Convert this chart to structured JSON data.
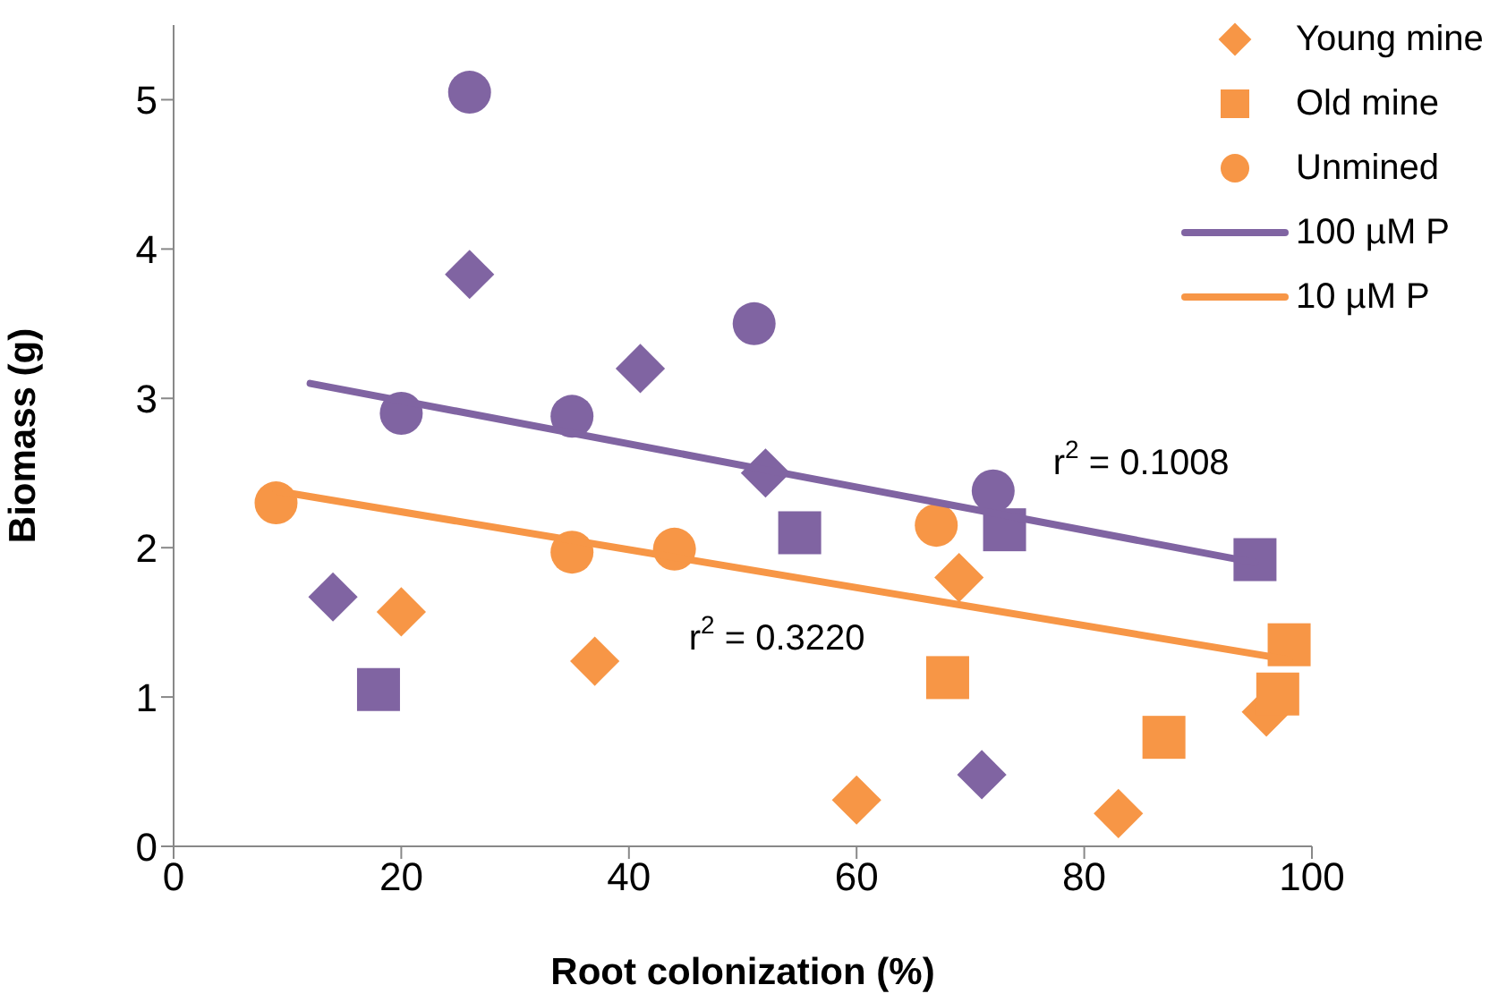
{
  "chart_data": {
    "type": "scatter",
    "xlabel": "Root colonization (%)",
    "ylabel": "Biomass (g)",
    "xlim": [
      0,
      100
    ],
    "xticks": [
      0,
      20,
      40,
      60,
      80,
      100
    ],
    "ylim": [
      0,
      5.5
    ],
    "yticks": [
      0,
      1,
      2,
      3,
      4,
      5
    ],
    "legend": "top right",
    "series": [
      {
        "name": "Young mine",
        "color": "#f79646",
        "marker": "diamond",
        "x": [
          20,
          37,
          60,
          69,
          83,
          96
        ],
        "values": [
          1.57,
          1.24,
          0.31,
          1.8,
          0.22,
          0.9
        ]
      },
      {
        "name": "Old mine",
        "color": "#f79646",
        "marker": "square",
        "x": [
          68,
          87,
          97,
          98
        ],
        "values": [
          1.13,
          0.73,
          1.02,
          1.35
        ]
      },
      {
        "name": "Unmined",
        "color": "#f79646",
        "marker": "circle",
        "x": [
          9,
          35,
          44,
          67
        ],
        "values": [
          2.3,
          1.97,
          1.99,
          2.15
        ]
      },
      {
        "color": "#8064a2",
        "marker": "diamond",
        "x": [
          14,
          26,
          41,
          52,
          71
        ],
        "values": [
          1.67,
          3.83,
          3.2,
          2.5,
          0.48
        ]
      },
      {
        "color": "#8064a2",
        "marker": "square",
        "x": [
          18,
          55,
          73,
          95
        ],
        "values": [
          1.05,
          2.1,
          2.12,
          1.92
        ]
      },
      {
        "color": "#8064a2",
        "marker": "circle",
        "x": [
          20,
          26,
          35,
          51,
          72
        ],
        "values": [
          2.9,
          5.05,
          2.88,
          3.5,
          2.38
        ]
      },
      {
        "name": "100 µM P",
        "type": "line",
        "color": "#8064a2",
        "marker": "none",
        "x": [
          12,
          95
        ],
        "values": [
          3.1,
          1.9
        ]
      },
      {
        "name": "10 µM P",
        "type": "line",
        "color": "#f79646",
        "marker": "none",
        "x": [
          9,
          98
        ],
        "values": [
          2.38,
          1.25
        ]
      }
    ],
    "annotations": [
      "r$^{2}$ = 0.1008",
      "r$^{2}$ = 0.3220"
    ]
  }
}
